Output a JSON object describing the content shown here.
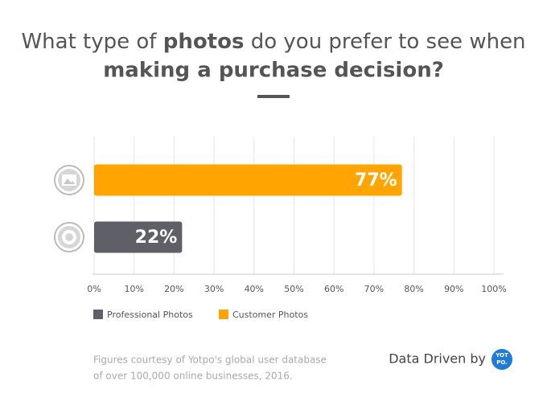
{
  "chart_data": {
    "type": "bar",
    "orientation": "horizontal",
    "title": [
      "What type of ",
      "photos",
      " do you prefer to see when",
      "making a purchase decision?"
    ],
    "categories": [
      null,
      null
    ],
    "series": [
      {
        "name": "Professional Photos",
        "color": "#5f5f67",
        "values": [
          null,
          22
        ],
        "value_labels": [
          null,
          "22%"
        ]
      },
      {
        "name": "Customer Photos",
        "color": "#ffa400",
        "values": [
          77,
          null
        ],
        "value_labels": [
          "77%",
          null
        ]
      }
    ],
    "xlim": [
      0,
      100
    ],
    "xticks": [
      {
        "value": 0,
        "label": "0%"
      },
      {
        "value": 10,
        "label": "10%"
      },
      {
        "value": 20,
        "label": "20%"
      },
      {
        "value": 30,
        "label": "30%"
      },
      {
        "value": 40,
        "label": "40%"
      },
      {
        "value": 50,
        "label": "50%"
      },
      {
        "value": 60,
        "label": "60%"
      },
      {
        "value": 70,
        "label": "70%"
      },
      {
        "value": 80,
        "label": "80%"
      },
      {
        "value": 90,
        "label": "90%"
      },
      {
        "value": 100,
        "label": "100%"
      }
    ],
    "grid": true,
    "legend": "bottom",
    "footnote": [
      "Figures courtesy of Yotpo's global user database",
      "of over 100,000 online businesses, 2016."
    ],
    "branding": {
      "text": "Data Driven by",
      "logo": [
        "YOT",
        "PO."
      ]
    }
  }
}
